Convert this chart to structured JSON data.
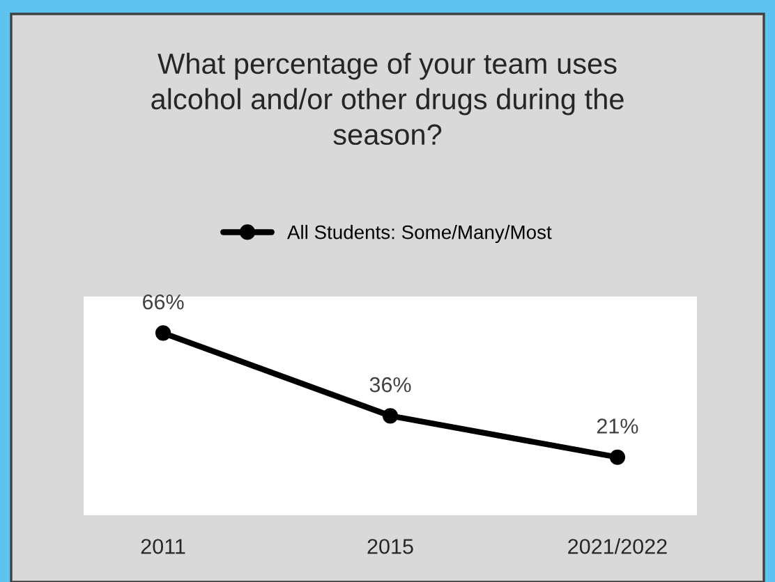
{
  "chart_data": {
    "type": "line",
    "title": "What percentage of your team uses alcohol and/or other drugs during the season?",
    "categories": [
      "2011",
      "2015",
      "2021/2022"
    ],
    "series": [
      {
        "name": "All Students: Some/Many/Most",
        "color": "#000000",
        "values": [
          66,
          36,
          21
        ],
        "value_labels": [
          "66%",
          "36%",
          "21%"
        ]
      }
    ],
    "marker": "circle",
    "line_style": "solid",
    "legend": "top",
    "grid": false,
    "tick_labels": "x"
  }
}
